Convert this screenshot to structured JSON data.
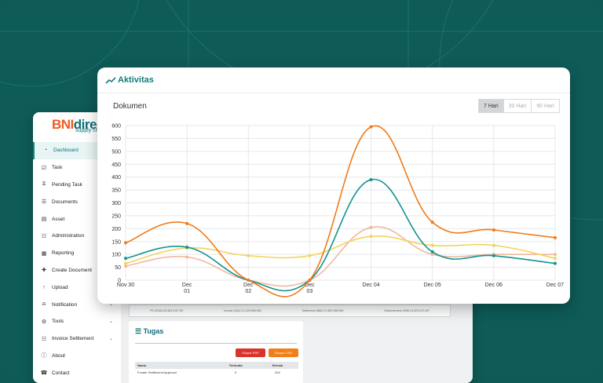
{
  "sidebar": {
    "logo_brand": "BNI",
    "logo_product": "direct",
    "logo_sub": "supply ch",
    "items": [
      {
        "label": "Dashboard",
        "icon": "dashboard-icon",
        "active": true
      },
      {
        "label": "Task",
        "icon": "task-icon"
      },
      {
        "label": "Pending Task",
        "icon": "pending-task-icon"
      },
      {
        "label": "Documents",
        "icon": "documents-icon"
      },
      {
        "label": "Asset",
        "icon": "asset-icon"
      },
      {
        "label": "Administration",
        "icon": "administration-icon"
      },
      {
        "label": "Reporting",
        "icon": "reporting-icon"
      },
      {
        "label": "Create Document",
        "icon": "create-document-icon"
      },
      {
        "label": "Upload",
        "icon": "upload-icon"
      },
      {
        "label": "Notification",
        "icon": "bell-icon",
        "chevron": true
      },
      {
        "label": "Tools",
        "icon": "gear-icon",
        "chevron": true
      },
      {
        "label": "Invoice Settlement",
        "icon": "invoice-icon",
        "chevron": true
      },
      {
        "label": "About",
        "icon": "info-icon"
      },
      {
        "label": "Contact",
        "icon": "contact-icon"
      }
    ]
  },
  "summary": [
    "PS (2340) 83,363,215,735",
    "Invoice (341) 3,1,229,360,952",
    "Settlement (880) 37,887,555,950",
    "Disbursement (398) 24,023,472,497"
  ],
  "tugas": {
    "title": "Tugas",
    "export_pdf": "Ekspor PDF",
    "export_csv": "Ekspor CSV",
    "columns": [
      "Nama",
      "Tertunda",
      "Selesai"
    ],
    "rows": [
      [
        "Funder Settlement Approval",
        "0",
        "200"
      ]
    ]
  },
  "panel": {
    "title": "Aktivitas",
    "chart_title": "Dokumen",
    "ranges": [
      "7 Hari",
      "30 Hari",
      "90 Hari"
    ],
    "active_range": "7 Hari"
  },
  "colors": {
    "accent": "#0f7d7a",
    "orange": "#f07a1a",
    "teal": "#14938f",
    "yellow": "#f2d45c",
    "peach": "#f0b8a0"
  },
  "chart_data": {
    "type": "line",
    "x": [
      "Nov 30",
      "Dec 01",
      "Dec 02",
      "Dec 03",
      "Dec 04",
      "Dec 05",
      "Dec 06",
      "Dec 07"
    ],
    "x_tick_lines": [
      [
        "Nov 30"
      ],
      [
        "Dec",
        "01"
      ],
      [
        "Dec",
        "02"
      ],
      [
        "Dec",
        "03"
      ],
      [
        "Dec 04"
      ],
      [
        "Dec 05"
      ],
      [
        "Dec 06"
      ],
      [
        "Dec 07"
      ]
    ],
    "ylim": [
      0,
      600
    ],
    "yticks": [
      0,
      50,
      100,
      150,
      200,
      250,
      300,
      350,
      400,
      450,
      500,
      550,
      600
    ],
    "grid": true,
    "series": [
      {
        "color": "#f07a1a",
        "values": [
          145,
          220,
          0,
          0,
          595,
          225,
          195,
          165
        ]
      },
      {
        "color": "#14938f",
        "values": [
          85,
          128,
          0,
          0,
          390,
          110,
          95,
          65
        ]
      },
      {
        "color": "#f2d45c",
        "values": [
          65,
          125,
          95,
          95,
          170,
          135,
          135,
          85
        ]
      },
      {
        "color": "#f0b8a0",
        "values": [
          55,
          90,
          0,
          0,
          205,
          100,
          100,
          100
        ]
      }
    ]
  }
}
